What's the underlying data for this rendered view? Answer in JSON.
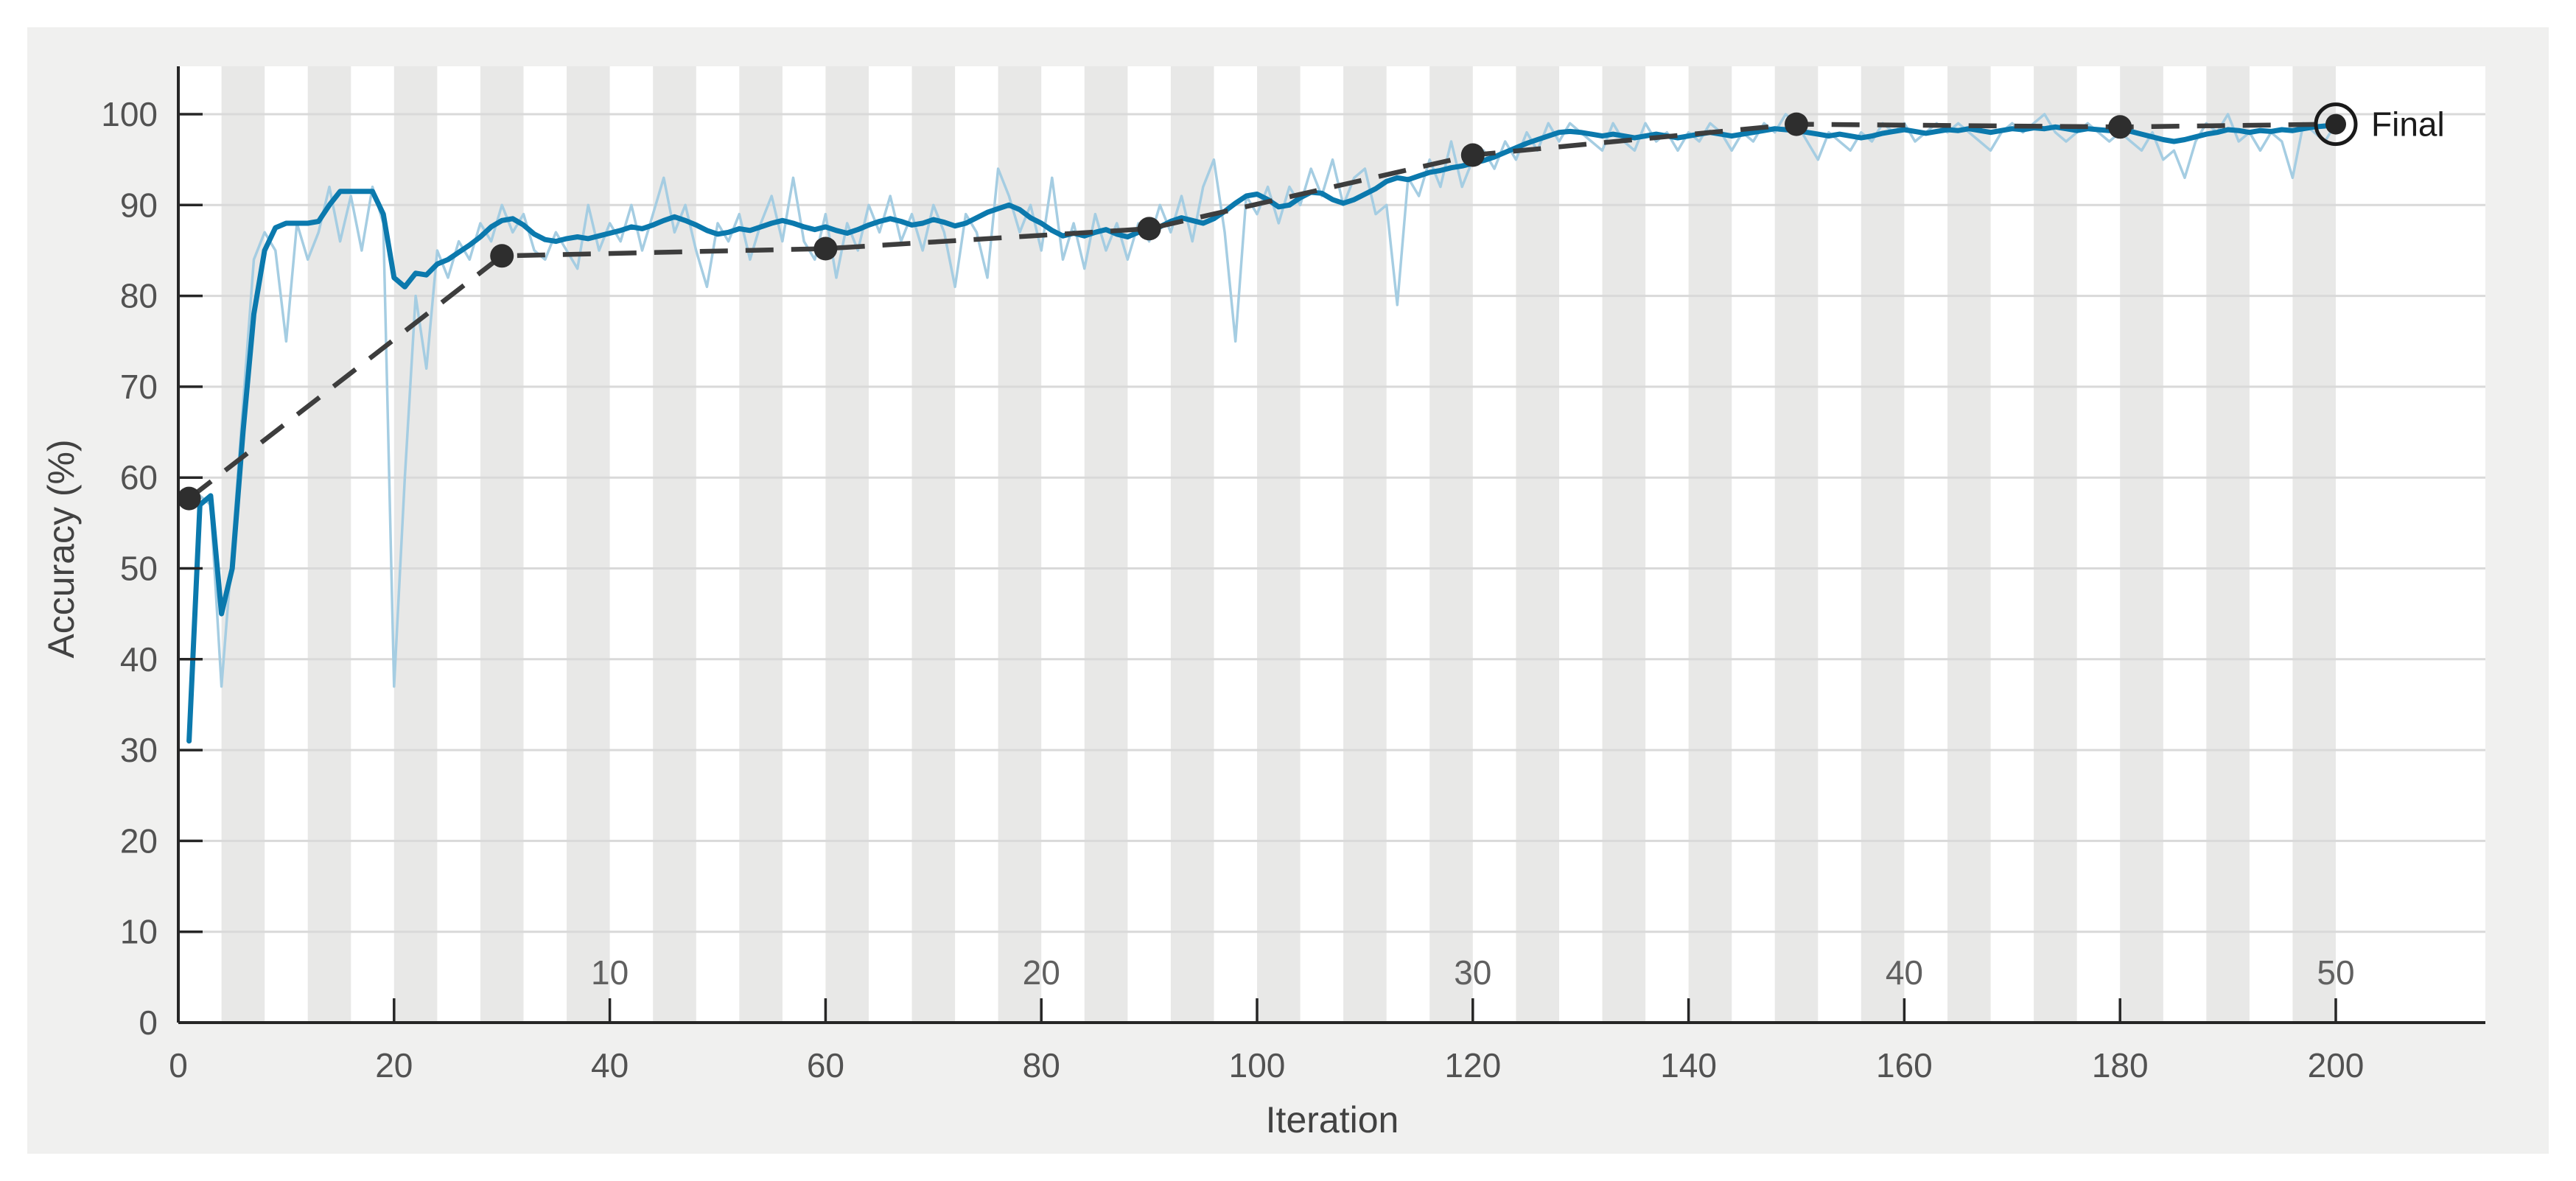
{
  "chart_data": {
    "type": "line",
    "title": "",
    "xlabel": "Iteration",
    "ylabel": "Accuracy (%)",
    "xlim": [
      0,
      214
    ],
    "ylim": [
      0,
      105
    ],
    "x_ticks": [
      0,
      20,
      40,
      60,
      80,
      100,
      120,
      140,
      160,
      180,
      200
    ],
    "y_ticks": [
      0,
      10,
      20,
      30,
      40,
      50,
      60,
      70,
      80,
      90,
      100
    ],
    "grid": "horizontal",
    "epoch_shading": {
      "iterations_per_epoch": 4,
      "total_epochs": 50,
      "shaded_epochs": "even",
      "labels": [
        {
          "label": "10",
          "iteration": 40
        },
        {
          "label": "20",
          "iteration": 80
        },
        {
          "label": "30",
          "iteration": 120
        },
        {
          "label": "40",
          "iteration": 160
        },
        {
          "label": "50",
          "iteration": 200
        }
      ]
    },
    "annotation": {
      "label": "Final",
      "x": 200,
      "y": 98.9
    },
    "series": [
      {
        "name": "training-accuracy-raw",
        "color": "#a5cde2",
        "width": 3.5,
        "x_start": 1,
        "y": [
          31,
          58,
          57,
          37,
          52,
          68,
          84,
          87,
          85,
          75,
          88,
          84,
          87,
          92,
          86,
          91,
          85,
          92,
          88,
          37,
          60,
          80,
          72,
          85,
          82,
          86,
          84,
          88,
          86,
          90,
          87,
          89,
          85,
          84,
          87,
          85,
          83,
          90,
          85,
          88,
          86,
          90,
          85,
          89,
          93,
          87,
          90,
          85,
          81,
          88,
          86,
          89,
          84,
          88,
          91,
          86,
          93,
          86,
          84,
          89,
          82,
          88,
          85,
          90,
          87,
          91,
          86,
          89,
          85,
          90,
          87,
          81,
          89,
          87,
          82,
          94,
          91,
          87,
          90,
          85,
          93,
          84,
          88,
          83,
          89,
          85,
          88,
          84,
          88,
          86,
          90,
          87,
          91,
          86,
          92,
          95,
          87,
          75,
          91,
          89,
          92,
          88,
          92,
          90,
          94,
          91,
          95,
          90,
          93,
          94,
          89,
          90,
          79,
          93,
          91,
          95,
          92,
          97,
          92,
          95,
          96,
          94,
          97,
          95,
          98,
          96,
          99,
          97,
          99,
          98,
          97,
          96,
          99,
          97,
          96,
          99,
          97,
          98,
          96,
          98,
          97,
          99,
          98,
          96,
          98,
          97,
          99,
          98,
          100,
          99,
          97,
          95,
          98,
          97,
          96,
          98,
          97,
          99,
          98,
          99,
          97,
          98,
          99,
          98,
          99,
          98,
          97,
          96,
          98,
          99,
          98,
          99,
          100,
          98,
          97,
          98,
          99,
          98,
          97,
          98,
          97,
          96,
          98,
          95,
          96,
          93,
          97,
          99,
          98,
          100,
          97,
          98,
          96,
          98,
          97,
          93,
          99,
          98,
          97,
          99
        ]
      },
      {
        "name": "training-accuracy-smoothed",
        "color": "#0b79ad",
        "width": 7,
        "x_start": 1,
        "y": [
          31,
          57,
          58,
          45,
          50,
          65,
          78,
          85,
          87.5,
          88,
          88,
          88,
          88.2,
          90,
          91.5,
          91.5,
          91.5,
          91.5,
          89,
          82,
          81,
          82.5,
          82.3,
          83.5,
          84,
          84.8,
          85.6,
          86.5,
          87.6,
          88.3,
          88.5,
          87.8,
          86.8,
          86.2,
          86,
          86.3,
          86.5,
          86.3,
          86.6,
          86.9,
          87.2,
          87.6,
          87.4,
          87.8,
          88.3,
          88.7,
          88.3,
          87.8,
          87.2,
          86.8,
          87,
          87.4,
          87.2,
          87.6,
          88,
          88.3,
          88,
          87.6,
          87.3,
          87.6,
          87.2,
          86.9,
          87.3,
          87.8,
          88.2,
          88.5,
          88.2,
          87.8,
          88,
          88.4,
          88.1,
          87.7,
          88,
          88.6,
          89.2,
          89.6,
          90,
          89.5,
          88.6,
          88,
          87.2,
          86.6,
          86.9,
          86.6,
          87,
          87.3,
          86.8,
          86.5,
          87,
          87.2,
          87.6,
          88.2,
          88.6,
          88.3,
          88,
          88.5,
          89.3,
          90.2,
          91,
          91.2,
          90.6,
          89.8,
          90,
          90.8,
          91.4,
          91.3,
          90.6,
          90.2,
          90.6,
          91.2,
          91.8,
          92.6,
          93,
          92.8,
          93.2,
          93.6,
          93.8,
          94.1,
          94.3,
          94.6,
          94.9,
          95.3,
          95.8,
          96.3,
          96.8,
          97.2,
          97.6,
          98,
          98.1,
          98,
          97.8,
          97.6,
          97.8,
          97.6,
          97.4,
          97.6,
          97.8,
          97.6,
          97.4,
          97.6,
          97.8,
          98,
          97.8,
          97.6,
          97.8,
          98,
          98.2,
          98.4,
          98.3,
          98.2,
          98,
          97.8,
          97.6,
          97.8,
          97.6,
          97.4,
          97.6,
          97.9,
          98.1,
          98.3,
          98.1,
          97.9,
          98.1,
          98.3,
          98.2,
          98.4,
          98.2,
          98,
          98.2,
          98.4,
          98.3,
          98.5,
          98.4,
          98.6,
          98.4,
          98.2,
          98.4,
          98.3,
          98.2,
          98.3,
          98.1,
          97.8,
          97.5,
          97.2,
          97,
          97.2,
          97.5,
          97.8,
          98,
          98.3,
          98.2,
          98,
          98.2,
          98.1,
          98.3,
          98.2,
          98.4,
          98.6,
          98.7,
          98.8
        ]
      },
      {
        "name": "validation-accuracy",
        "color": "#3d3d3d",
        "width": 6.5,
        "dash": [
          38,
          24
        ],
        "marker": "filled-dot",
        "x": [
          1,
          30,
          60,
          90,
          120,
          150,
          180,
          200
        ],
        "y": [
          57.7,
          84.4,
          85.2,
          87.4,
          95.5,
          98.9,
          98.6,
          98.9
        ]
      }
    ],
    "colors": {
      "figure_background": "#f0f0ef",
      "plot_background": "#ffffff",
      "epoch_band": "#e8e8e7",
      "gridline": "#d9d9d9",
      "axis": "#262626",
      "tick_label": "#525252",
      "epoch_label": "#606060",
      "axis_title": "#424242",
      "final_label": "#1a1a1a"
    }
  },
  "labels": {
    "xlabel": "Iteration",
    "ylabel": "Accuracy (%)",
    "final": "Final"
  }
}
